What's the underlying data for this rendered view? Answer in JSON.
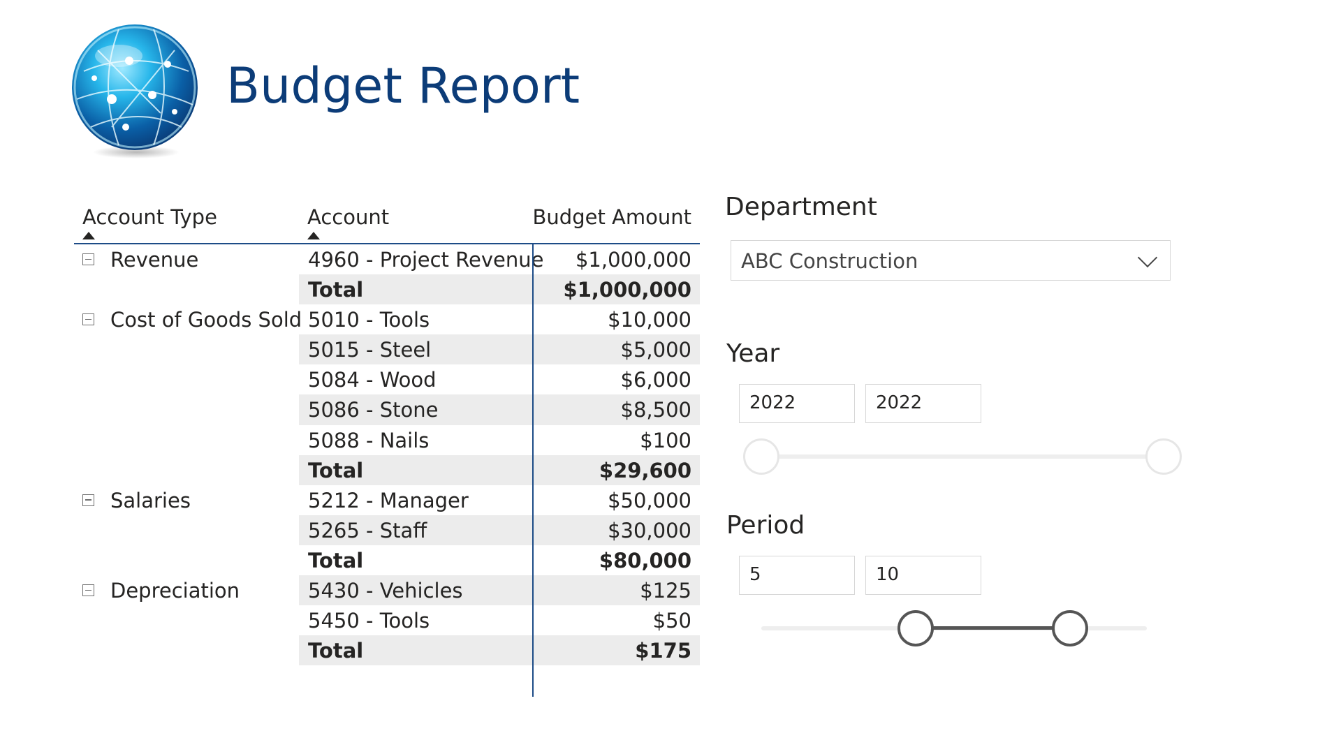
{
  "report": {
    "title": "Budget Report",
    "logo_icon": "globe-icon"
  },
  "matrix": {
    "headers": {
      "account_type": "Account Type",
      "account": "Account",
      "budget_amount": "Budget Amount"
    },
    "rows": [
      {
        "type": "Revenue",
        "account": "4960 - Project Revenue",
        "amount": "$1,000,000",
        "total": false,
        "shaded": false
      },
      {
        "type": "",
        "account": "Total",
        "amount": "$1,000,000",
        "total": true,
        "shaded": true
      },
      {
        "type": "Cost of Goods Sold",
        "account": "5010 - Tools",
        "amount": "$10,000",
        "total": false,
        "shaded": false
      },
      {
        "type": "",
        "account": "5015 - Steel",
        "amount": "$5,000",
        "total": false,
        "shaded": true
      },
      {
        "type": "",
        "account": "5084 - Wood",
        "amount": "$6,000",
        "total": false,
        "shaded": false
      },
      {
        "type": "",
        "account": "5086 - Stone",
        "amount": "$8,500",
        "total": false,
        "shaded": true
      },
      {
        "type": "",
        "account": "5088 - Nails",
        "amount": "$100",
        "total": false,
        "shaded": false
      },
      {
        "type": "",
        "account": "Total",
        "amount": "$29,600",
        "total": true,
        "shaded": true
      },
      {
        "type": "Salaries",
        "account": "5212 - Manager",
        "amount": "$50,000",
        "total": false,
        "shaded": false
      },
      {
        "type": "",
        "account": "5265 - Staff",
        "amount": "$30,000",
        "total": false,
        "shaded": true
      },
      {
        "type": "",
        "account": "Total",
        "amount": "$80,000",
        "total": true,
        "shaded": false
      },
      {
        "type": "Depreciation",
        "account": "5430 - Vehicles",
        "amount": "$125",
        "total": false,
        "shaded": true
      },
      {
        "type": "",
        "account": "5450 - Tools",
        "amount": "$50",
        "total": false,
        "shaded": false
      },
      {
        "type": "",
        "account": "Total",
        "amount": "$175",
        "total": true,
        "shaded": true
      }
    ]
  },
  "slicers": {
    "department": {
      "title": "Department",
      "selected": "ABC Construction"
    },
    "year": {
      "title": "Year",
      "from": "2022",
      "to": "2022",
      "range_fraction": [
        0,
        1
      ]
    },
    "period": {
      "title": "Period",
      "from": "5",
      "to": "10",
      "range_fraction": [
        0.4,
        0.8
      ]
    }
  },
  "colors": {
    "title": "#0c3c78",
    "table_line": "#1d4c87",
    "shaded_row": "#ececec",
    "slider_active": "#555555"
  }
}
